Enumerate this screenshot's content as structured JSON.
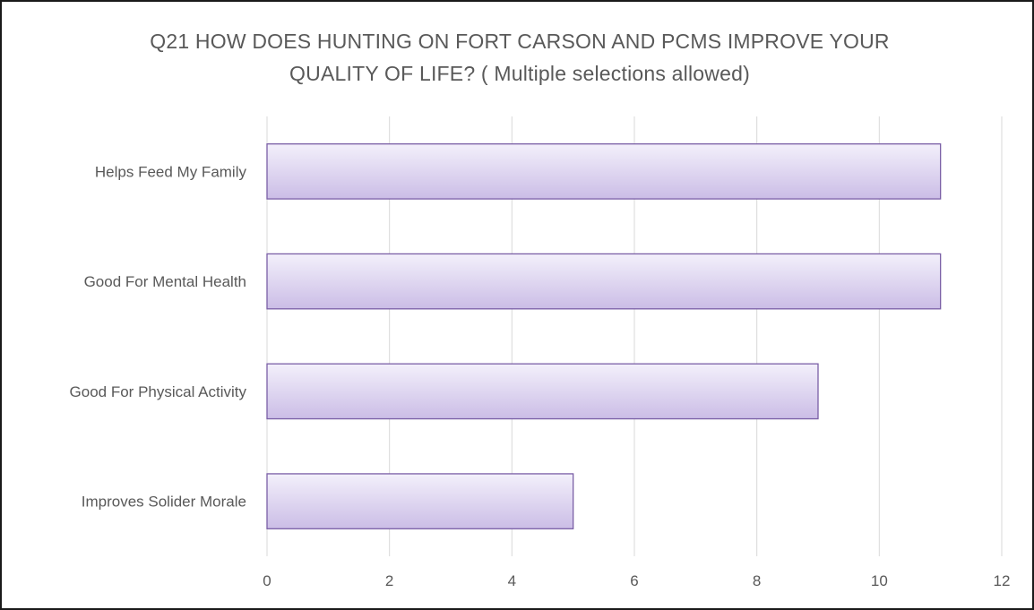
{
  "chart_data": {
    "type": "bar",
    "orientation": "horizontal",
    "title_lines": [
      "Q21 HOW DOES HUNTING ON FORT CARSON AND PCMS IMPROVE YOUR",
      "QUALITY OF LIFE? ( Multiple selections allowed)"
    ],
    "categories": [
      "Helps Feed My Family",
      "Good For Mental Health",
      "Good For Physical Activity",
      "Improves Solider Morale"
    ],
    "values": [
      11,
      11,
      9,
      5
    ],
    "xlim": [
      0,
      12
    ],
    "x_ticks": [
      0,
      2,
      4,
      6,
      8,
      10,
      12
    ],
    "grid": true,
    "legend": "none",
    "bar_fill_top": "#f3f0fb",
    "bar_fill_bottom": "#cbbde6",
    "bar_stroke": "#7a5fa6",
    "grid_color": "#d9d9d9",
    "label_color": "#595959"
  }
}
